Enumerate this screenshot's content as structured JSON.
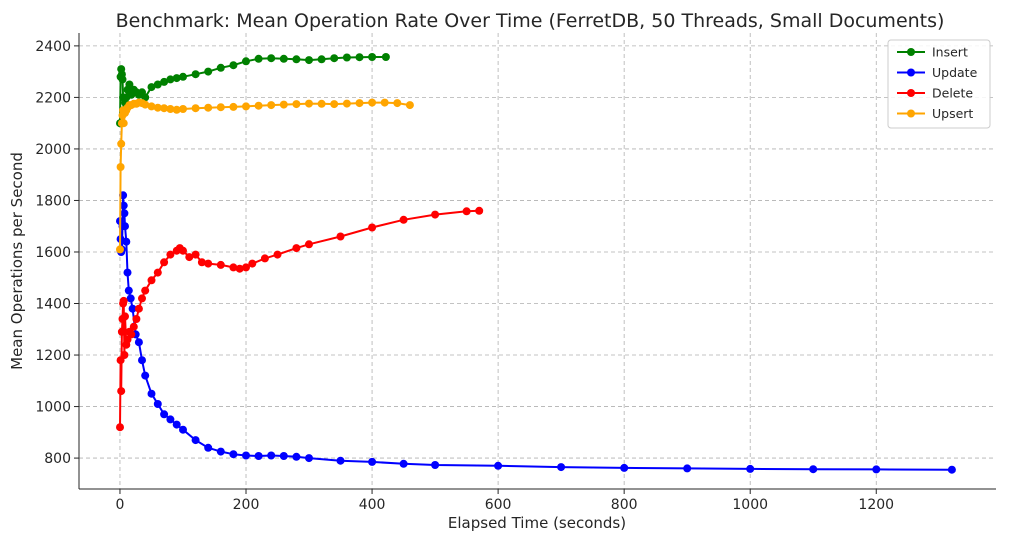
{
  "chart_data": {
    "type": "line",
    "title": "Benchmark: Mean Operation Rate Over Time (FerretDB, 50 Threads, Small Documents)",
    "xlabel": "Elapsed Time (seconds)",
    "ylabel": "Mean Operations per Second",
    "xlim": [
      -65,
      1390
    ],
    "ylim": [
      680,
      2450
    ],
    "xticks": [
      0,
      200,
      400,
      600,
      800,
      1000,
      1200
    ],
    "yticks": [
      800,
      1000,
      1200,
      1400,
      1600,
      1800,
      2000,
      2200,
      2400
    ],
    "grid": true,
    "legend_position": "top-right",
    "series": [
      {
        "name": "Insert",
        "color": "#008000",
        "x": [
          0,
          1,
          2,
          3,
          4,
          5,
          6,
          8,
          10,
          12,
          15,
          18,
          22,
          26,
          30,
          35,
          40,
          50,
          60,
          70,
          80,
          90,
          100,
          120,
          140,
          160,
          180,
          200,
          220,
          240,
          260,
          280,
          300,
          320,
          340,
          360,
          380,
          400,
          422
        ],
        "values": [
          2100,
          2280,
          2310,
          2290,
          2270,
          2200,
          2150,
          2180,
          2200,
          2230,
          2250,
          2210,
          2230,
          2220,
          2210,
          2220,
          2200,
          2240,
          2250,
          2260,
          2270,
          2275,
          2280,
          2290,
          2300,
          2315,
          2325,
          2340,
          2350,
          2352,
          2350,
          2348,
          2345,
          2348,
          2352,
          2355,
          2356,
          2357,
          2357
        ]
      },
      {
        "name": "Update",
        "color": "#0000ff",
        "x": [
          0,
          1,
          2,
          3,
          4,
          5,
          6,
          7,
          8,
          10,
          12,
          14,
          17,
          20,
          25,
          30,
          35,
          40,
          50,
          60,
          70,
          80,
          90,
          100,
          120,
          140,
          160,
          180,
          200,
          220,
          240,
          260,
          280,
          300,
          350,
          400,
          450,
          500,
          600,
          700,
          800,
          900,
          1000,
          1100,
          1200,
          1320
        ],
        "values": [
          1720,
          1650,
          1600,
          1610,
          1700,
          1820,
          1780,
          1750,
          1700,
          1640,
          1520,
          1450,
          1420,
          1380,
          1280,
          1250,
          1180,
          1120,
          1050,
          1010,
          970,
          950,
          930,
          910,
          870,
          840,
          825,
          815,
          810,
          808,
          810,
          808,
          805,
          800,
          790,
          785,
          778,
          773,
          770,
          765,
          762,
          760,
          758,
          757,
          756,
          755
        ]
      },
      {
        "name": "Delete",
        "color": "#ff0000",
        "x": [
          0,
          1,
          2,
          3,
          4,
          5,
          6,
          7,
          8,
          10,
          12,
          15,
          18,
          22,
          26,
          30,
          35,
          40,
          50,
          60,
          70,
          80,
          90,
          95,
          100,
          110,
          120,
          130,
          140,
          160,
          180,
          190,
          200,
          210,
          230,
          250,
          280,
          300,
          350,
          400,
          450,
          500,
          550,
          570
        ],
        "values": [
          920,
          1180,
          1060,
          1290,
          1340,
          1400,
          1410,
          1200,
          1350,
          1240,
          1260,
          1290,
          1280,
          1310,
          1340,
          1380,
          1420,
          1450,
          1490,
          1520,
          1560,
          1590,
          1605,
          1615,
          1605,
          1580,
          1590,
          1560,
          1555,
          1550,
          1540,
          1535,
          1540,
          1555,
          1575,
          1590,
          1615,
          1630,
          1660,
          1695,
          1725,
          1745,
          1758,
          1760
        ]
      },
      {
        "name": "Upsert",
        "color": "#ffa500",
        "x": [
          0,
          1,
          2,
          3,
          4,
          5,
          6,
          8,
          10,
          12,
          15,
          18,
          22,
          26,
          30,
          35,
          40,
          50,
          60,
          70,
          80,
          90,
          100,
          120,
          140,
          160,
          180,
          200,
          220,
          240,
          260,
          280,
          300,
          320,
          340,
          360,
          380,
          400,
          420,
          440,
          460
        ],
        "values": [
          1610,
          1930,
          2020,
          2100,
          2130,
          2150,
          2100,
          2140,
          2150,
          2160,
          2170,
          2170,
          2175,
          2175,
          2180,
          2178,
          2172,
          2165,
          2160,
          2158,
          2155,
          2152,
          2155,
          2158,
          2160,
          2162,
          2163,
          2165,
          2168,
          2170,
          2172,
          2174,
          2176,
          2175,
          2174,
          2176,
          2178,
          2180,
          2180,
          2178,
          2170
        ]
      }
    ]
  }
}
